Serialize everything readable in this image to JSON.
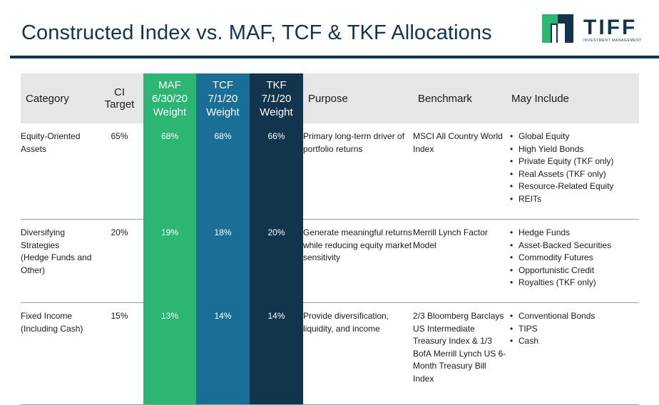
{
  "title": "Constructed Index vs. MAF, TCF & TKF Allocations",
  "logo": {
    "name": "TIFF",
    "tagline": "INVESTMENT MANAGEMENT",
    "colors": {
      "navy": "#12344d",
      "green": "#2db573"
    }
  },
  "table": {
    "headers": {
      "category": "Category",
      "ci_target": [
        "CI",
        "Target"
      ],
      "maf": [
        "MAF",
        "6/30/20",
        "Weight"
      ],
      "tcf": [
        "TCF",
        "7/1/20",
        "Weight"
      ],
      "tkf": [
        "TKF",
        "7/1/20",
        "Weight"
      ],
      "purpose": "Purpose",
      "benchmark": "Benchmark",
      "may_include": "May Include"
    },
    "column_colors": {
      "maf": "#2db573",
      "tcf": "#1b6f97",
      "tkf": "#12344d",
      "header_bg": "#e6e6e6"
    },
    "rows": [
      {
        "category": "Equity-Oriented Assets",
        "category_sub": "",
        "ci_target": "65%",
        "maf": "68%",
        "tcf": "68%",
        "tkf": "66%",
        "purpose": "Primary long-term driver of portfolio returns",
        "benchmark": "MSCI All Country World Index",
        "may_include": [
          "Global Equity",
          "High Yield Bonds",
          "Private Equity (TKF only)",
          "Real Assets (TKF only)",
          "Resource-Related Equity",
          "REITs"
        ]
      },
      {
        "category": "Diversifying Strategies",
        "category_sub": "(Hedge Funds and Other)",
        "ci_target": "20%",
        "maf": "19%",
        "tcf": "18%",
        "tkf": "20%",
        "purpose": "Generate meaningful returns while reducing equity market sensitivity",
        "benchmark": "Merrill Lynch Factor Model",
        "may_include": [
          "Hedge Funds",
          "Asset-Backed Securities",
          "Commodity Futures",
          "Opportunistic Credit",
          "Royalties (TKF only)"
        ]
      },
      {
        "category": "Fixed Income",
        "category_sub": "(Including Cash)",
        "ci_target": "15%",
        "maf": "13%",
        "tcf": "14%",
        "tkf": "14%",
        "purpose": "Provide diversification, liquidity, and income",
        "benchmark": "2/3 Bloomberg Barclays US Intermediate Treasury Index & 1/3 BofA Merrill Lynch US 6-Month Treasury Bill Index",
        "may_include": [
          "Conventional Bonds",
          "TIPS",
          "Cash"
        ]
      }
    ]
  }
}
